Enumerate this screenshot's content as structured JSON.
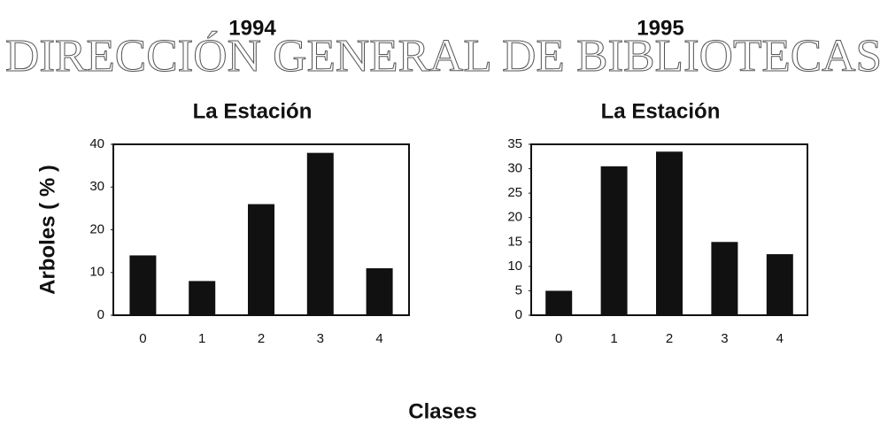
{
  "watermark": "DIRECCIÓN GENERAL DE BIBLIOTECAS",
  "xlabel": "Clases",
  "chart_data": [
    {
      "type": "bar",
      "title": "1994",
      "subtitle": "La Estación",
      "ylabel": "Arboles ( % )",
      "categories": [
        "0",
        "1",
        "2",
        "3",
        "4"
      ],
      "values": [
        14,
        8,
        26,
        38,
        11
      ],
      "color": "#111111",
      "ylim": [
        0,
        40
      ],
      "yticks": [
        0,
        10,
        20,
        30,
        40
      ],
      "grid": false
    },
    {
      "type": "bar",
      "title": "1995",
      "subtitle": "La Estación",
      "categories": [
        "0",
        "1",
        "2",
        "3",
        "4"
      ],
      "values": [
        5,
        30.5,
        33.5,
        15,
        12.5
      ],
      "color": "#111111",
      "ylim": [
        0,
        35
      ],
      "yticks": [
        0,
        5,
        10,
        15,
        20,
        25,
        30,
        35
      ],
      "grid": false
    }
  ]
}
